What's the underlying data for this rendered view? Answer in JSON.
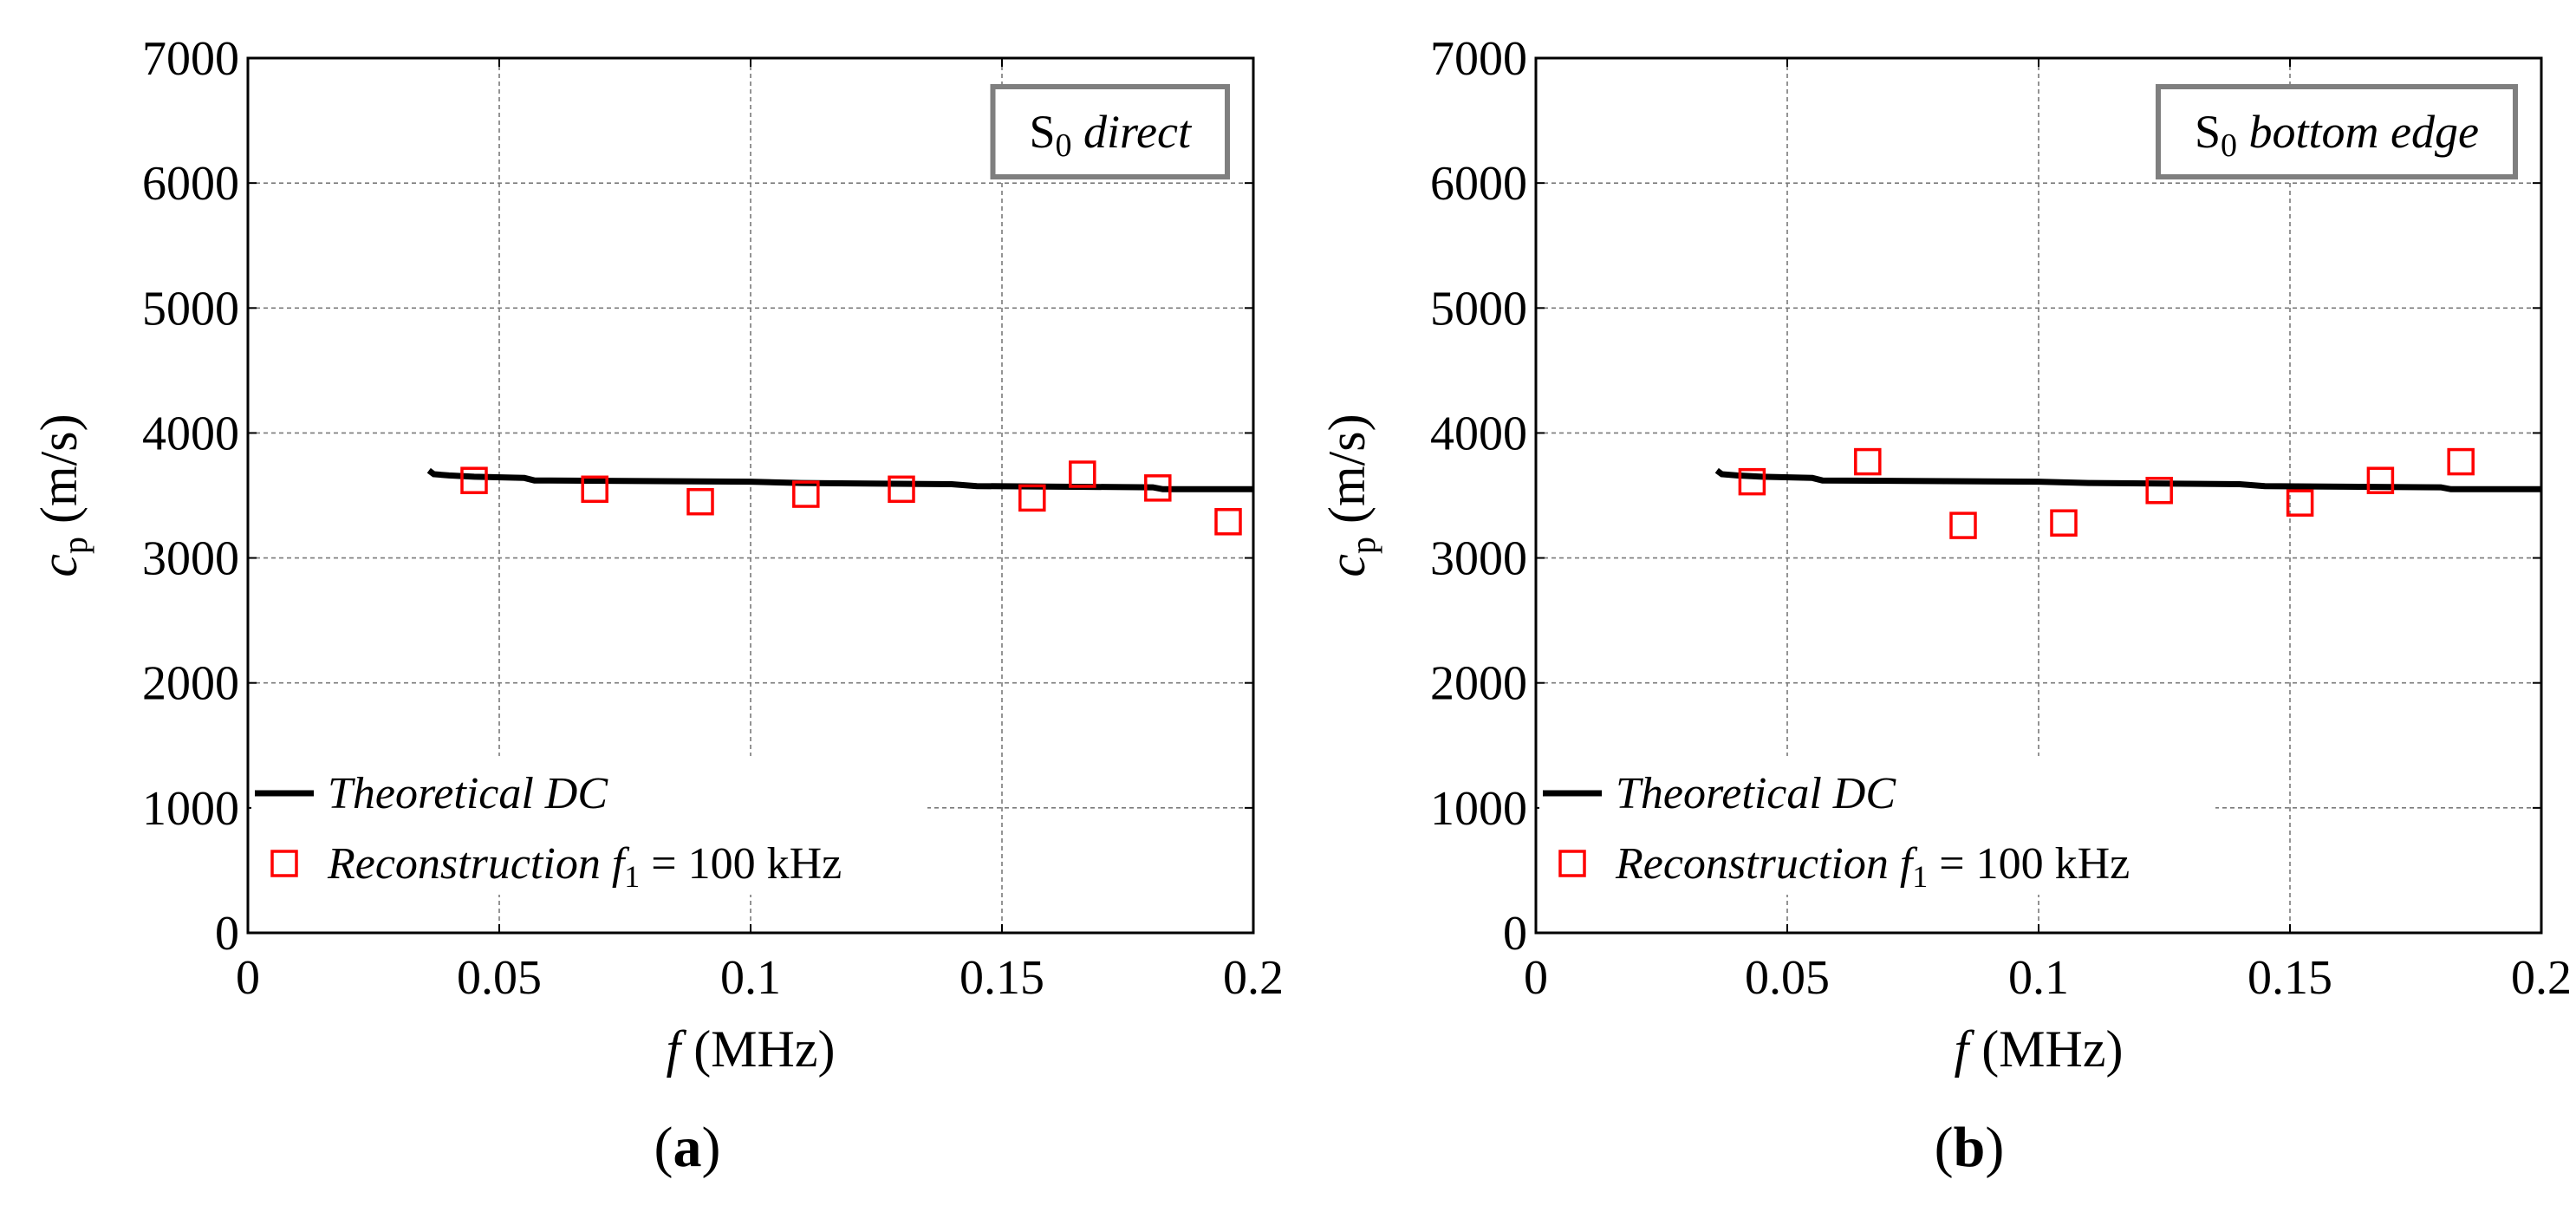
{
  "figure": {
    "chart_data": [
      {
        "type": "line",
        "panel": "a",
        "caption": "(a)",
        "annotation": {
          "prefix": "S",
          "subscript": "0",
          "text": "direct"
        },
        "xlabel": {
          "var": "f",
          "unit": "(MHz)"
        },
        "ylabel": {
          "var": "c",
          "subscript": "p",
          "unit": "(m/s)"
        },
        "xlim": [
          0,
          0.2
        ],
        "ylim": [
          0,
          7000
        ],
        "xticks": [
          0,
          0.05,
          0.1,
          0.15,
          0.2
        ],
        "xtick_labels": [
          "0",
          "0.05",
          "0.1",
          "0.15",
          "0.2"
        ],
        "yticks": [
          0,
          1000,
          2000,
          3000,
          4000,
          5000,
          6000,
          7000
        ],
        "ytick_labels": [
          "0",
          "1000",
          "2000",
          "3000",
          "4000",
          "5000",
          "6000",
          "7000"
        ],
        "grid": true,
        "legend_position": "bottom-right",
        "series": [
          {
            "name": "Theoretical DC",
            "kind": "line",
            "color": "#000000",
            "x": [
              0.036,
              0.037,
              0.04,
              0.045,
              0.055,
              0.057,
              0.1,
              0.11,
              0.14,
              0.145,
              0.18,
              0.182,
              0.2
            ],
            "y": [
              3700,
              3670,
              3660,
              3650,
              3640,
              3620,
              3610,
              3600,
              3590,
              3575,
              3565,
              3550,
              3550
            ]
          },
          {
            "name": "Reconstruction f1 = 100 kHz",
            "legend": {
              "prefix": "Reconstruction ",
              "var": "f",
              "subscript": "1",
              "suffix": " = 100 kHz"
            },
            "kind": "scatter",
            "marker": "square",
            "color": "#ff0000",
            "x": [
              0.045,
              0.069,
              0.09,
              0.111,
              0.13,
              0.156,
              0.166,
              0.181,
              0.195
            ],
            "y": [
              3620,
              3550,
              3450,
              3510,
              3550,
              3480,
              3670,
              3560,
              3290
            ]
          }
        ]
      },
      {
        "type": "line",
        "panel": "b",
        "caption": "(b)",
        "annotation": {
          "prefix": "S",
          "subscript": "0",
          "text": "bottom edge"
        },
        "xlabel": {
          "var": "f",
          "unit": "(MHz)"
        },
        "ylabel": {
          "var": "c",
          "subscript": "p",
          "unit": "(m/s)"
        },
        "xlim": [
          0,
          0.2
        ],
        "ylim": [
          0,
          7000
        ],
        "xticks": [
          0,
          0.05,
          0.1,
          0.15,
          0.2
        ],
        "xtick_labels": [
          "0",
          "0.05",
          "0.1",
          "0.15",
          "0.2"
        ],
        "yticks": [
          0,
          1000,
          2000,
          3000,
          4000,
          5000,
          6000,
          7000
        ],
        "ytick_labels": [
          "0",
          "1000",
          "2000",
          "3000",
          "4000",
          "5000",
          "6000",
          "7000"
        ],
        "grid": true,
        "legend_position": "bottom-right",
        "series": [
          {
            "name": "Theoretical DC",
            "kind": "line",
            "color": "#000000",
            "x": [
              0.036,
              0.037,
              0.04,
              0.045,
              0.055,
              0.057,
              0.1,
              0.11,
              0.14,
              0.145,
              0.18,
              0.182,
              0.2
            ],
            "y": [
              3700,
              3670,
              3660,
              3650,
              3640,
              3620,
              3610,
              3600,
              3590,
              3575,
              3565,
              3550,
              3550
            ]
          },
          {
            "name": "Reconstruction f1 = 100 kHz",
            "legend": {
              "prefix": "Reconstruction ",
              "var": "f",
              "subscript": "1",
              "suffix": " = 100 kHz"
            },
            "kind": "scatter",
            "marker": "square",
            "color": "#ff0000",
            "x": [
              0.043,
              0.066,
              0.085,
              0.105,
              0.124,
              0.152,
              0.168,
              0.184
            ],
            "y": [
              3610,
              3770,
              3260,
              3280,
              3540,
              3440,
              3620,
              3770
            ]
          }
        ]
      }
    ]
  }
}
